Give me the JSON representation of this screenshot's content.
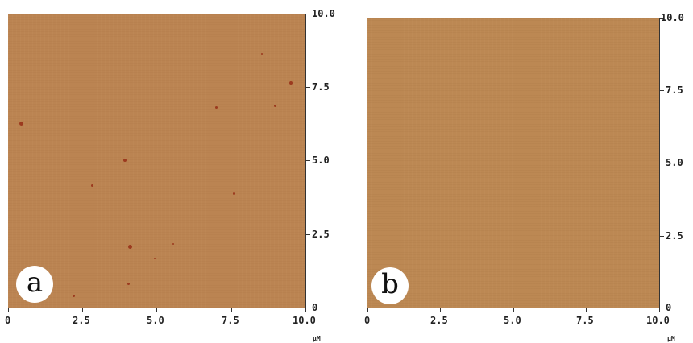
{
  "panels": [
    {
      "label": "a",
      "x_ticks": [
        "0",
        "2.5",
        "5.0",
        "7.5",
        "10.0"
      ],
      "y_ticks": [
        "10.0",
        "7.5",
        "5.0",
        "2.5",
        "0"
      ],
      "unit": "µM"
    },
    {
      "label": "b",
      "x_ticks": [
        "0",
        "2.5",
        "5.0",
        "7.5",
        "10.0"
      ],
      "y_ticks": [
        "10.0",
        "7.5",
        "5.0",
        "2.5",
        "0"
      ],
      "unit": "µM"
    }
  ],
  "colors": {
    "surface_a": "#bb8452",
    "surface_b": "#bc8853",
    "particle": "#9c3a1e",
    "badge_bg": "#ffffff"
  }
}
